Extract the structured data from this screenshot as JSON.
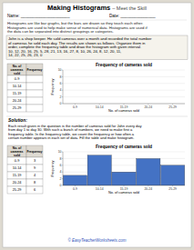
{
  "title": "Making Histograms",
  "subtitle": "– Meet the Skill",
  "annotations": {
    "name_label": "Name: _____________________",
    "date_label": "Date: _______________",
    "intro": [
      "Histograms are like bar graphs, but the bars are drawn so they touch each other.",
      "Histograms are used to help make sense of numerical data. Histograms are used if",
      "the data can be separated into distinct groupings or categories."
    ],
    "problem": [
      "John is a shop keeper. He sold cameras over a month and recorded the total number",
      "of cameras he sold each day. The results are shown as follows. Organize them in",
      "order, complete the frequency table and draw the histogram with given interval.",
      "10, 12, 20, 16, 25, 5, 28, 21, 13, 16, 27, 8, 10, 26, 24, 8, 12, 20, 11,",
      "14, 22, 25, 26, 23, 0"
    ],
    "solution_label": "Solution:",
    "solution": [
      "Each result given in the question is the number of cameras sold for John every day",
      "from day 1 to day 30. With such a bunch of numbers, we need to make first a",
      "frequency table. In the frequency table, we count the frequency or how often a",
      "certain number appears in each set of data. Fill the table and make histogram."
    ],
    "footer": "© EasyTeacherWorksheets.com"
  },
  "tables": [
    {
      "headers": [
        "No. of\ncameras\nsold",
        "Frequency"
      ],
      "rows": [
        [
          "0-9"
        ],
        [
          "10-14"
        ],
        [
          "15-19"
        ],
        [
          "20-24"
        ],
        [
          "25-29"
        ]
      ]
    },
    {
      "headers": [
        "No. of\ncameras\nsold",
        "Frequency"
      ],
      "rows": [
        [
          "0-9",
          "3"
        ],
        [
          "10-14",
          "9"
        ],
        [
          "15-19",
          "4"
        ],
        [
          "20-24",
          "8"
        ],
        [
          "25-29",
          "6"
        ]
      ]
    }
  ],
  "chart_data": [
    {
      "type": "bar",
      "title": "Frequency of cameras sold",
      "x_label": "No. of cameras sold",
      "y_label": "Frequency",
      "categories": [
        "0-9",
        "10-14",
        "15-19",
        "20-24",
        "25-29"
      ],
      "values": [
        0,
        0,
        0,
        0,
        0
      ],
      "color": "#ffffff",
      "ylim": [
        0,
        10
      ],
      "yticks": [
        0,
        2,
        4,
        6,
        8,
        10
      ],
      "grid": true
    },
    {
      "type": "bar",
      "title": "Frequency of cameras sold",
      "x_label": "No. of cameras sold",
      "y_label": "Frequency",
      "categories": [
        "0-9",
        "10-14",
        "15-19",
        "20-24",
        "25-29"
      ],
      "values": [
        3,
        9,
        4,
        8,
        6
      ],
      "color": "#4472c4",
      "ylim": [
        0,
        10
      ],
      "yticks": [
        0,
        2,
        4,
        6,
        8,
        10
      ],
      "grid": true
    }
  ]
}
